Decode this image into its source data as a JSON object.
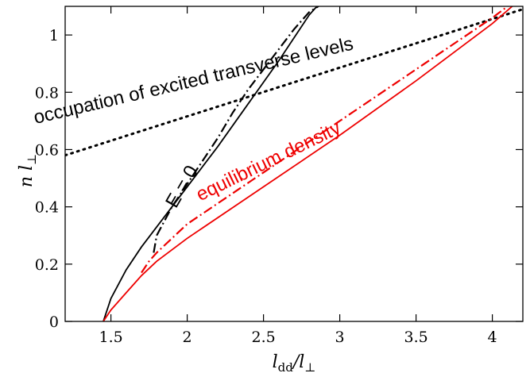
{
  "chart_data": {
    "type": "line",
    "xlabel": "l_dd/l_⊥",
    "ylabel": "n l_⊥",
    "xlim": [
      1.2,
      4.2
    ],
    "ylim": [
      0,
      1.1
    ],
    "grid": false,
    "xticks": [
      1.5,
      2,
      2.5,
      3,
      3.5,
      4
    ],
    "xtick_labels": [
      "1.5",
      "2",
      "2.5",
      "3",
      "3.5",
      "4"
    ],
    "yticks": [
      0,
      0.2,
      0.4,
      0.6,
      0.8,
      1.0
    ],
    "ytick_labels": [
      "0",
      "0.2",
      "0.4",
      "0.6",
      "0.8",
      "1"
    ],
    "colors": {
      "black": "#000000",
      "red": "#ee0000"
    },
    "series": [
      {
        "style": "solid",
        "color": "#000000",
        "x": [
          1.45,
          1.5,
          1.6,
          1.7,
          1.8,
          2.0,
          2.2,
          2.4,
          2.6,
          2.8,
          2.85
        ],
        "y": [
          0.0,
          0.08,
          0.18,
          0.26,
          0.33,
          0.47,
          0.61,
          0.76,
          0.91,
          1.07,
          1.1
        ]
      },
      {
        "style": "dashdot",
        "color": "#000000",
        "x": [
          1.78,
          1.8,
          1.85,
          1.9,
          2.0,
          2.1,
          2.2,
          2.3,
          2.4,
          2.5,
          2.6,
          2.7,
          2.8,
          2.86
        ],
        "y": [
          0.24,
          0.3,
          0.35,
          0.4,
          0.48,
          0.56,
          0.64,
          0.73,
          0.81,
          0.88,
          0.95,
          1.02,
          1.08,
          1.1
        ]
      },
      {
        "style": "dotted",
        "color": "#000000",
        "x": [
          1.2,
          4.2
        ],
        "y": [
          0.58,
          1.09
        ]
      },
      {
        "style": "solid",
        "color": "#ee0000",
        "x": [
          1.45,
          1.5,
          1.6,
          1.7,
          1.8,
          2.0,
          2.5,
          3.0,
          3.5,
          4.0,
          4.13
        ],
        "y": [
          0.0,
          0.04,
          0.1,
          0.16,
          0.21,
          0.29,
          0.47,
          0.65,
          0.84,
          1.04,
          1.1
        ]
      },
      {
        "style": "dashdot",
        "color": "#ee0000",
        "x": [
          1.7,
          1.75,
          1.8,
          1.9,
          2.0,
          2.5,
          3.0,
          3.5,
          4.0,
          4.1
        ],
        "y": [
          0.17,
          0.21,
          0.24,
          0.29,
          0.34,
          0.52,
          0.7,
          0.88,
          1.06,
          1.1
        ]
      }
    ],
    "annotations": [
      {
        "text": "E = 0",
        "x": 2.0,
        "y": 0.46,
        "angle": -60,
        "color": "#000000"
      },
      {
        "text": "occupation of excited transverse levels",
        "x": 2.05,
        "y": 0.82,
        "angle": -13.2,
        "color": "#000000"
      },
      {
        "text": "equilibrium density",
        "x": 2.55,
        "y": 0.54,
        "angle": -26,
        "color": "#ee0000"
      }
    ]
  }
}
